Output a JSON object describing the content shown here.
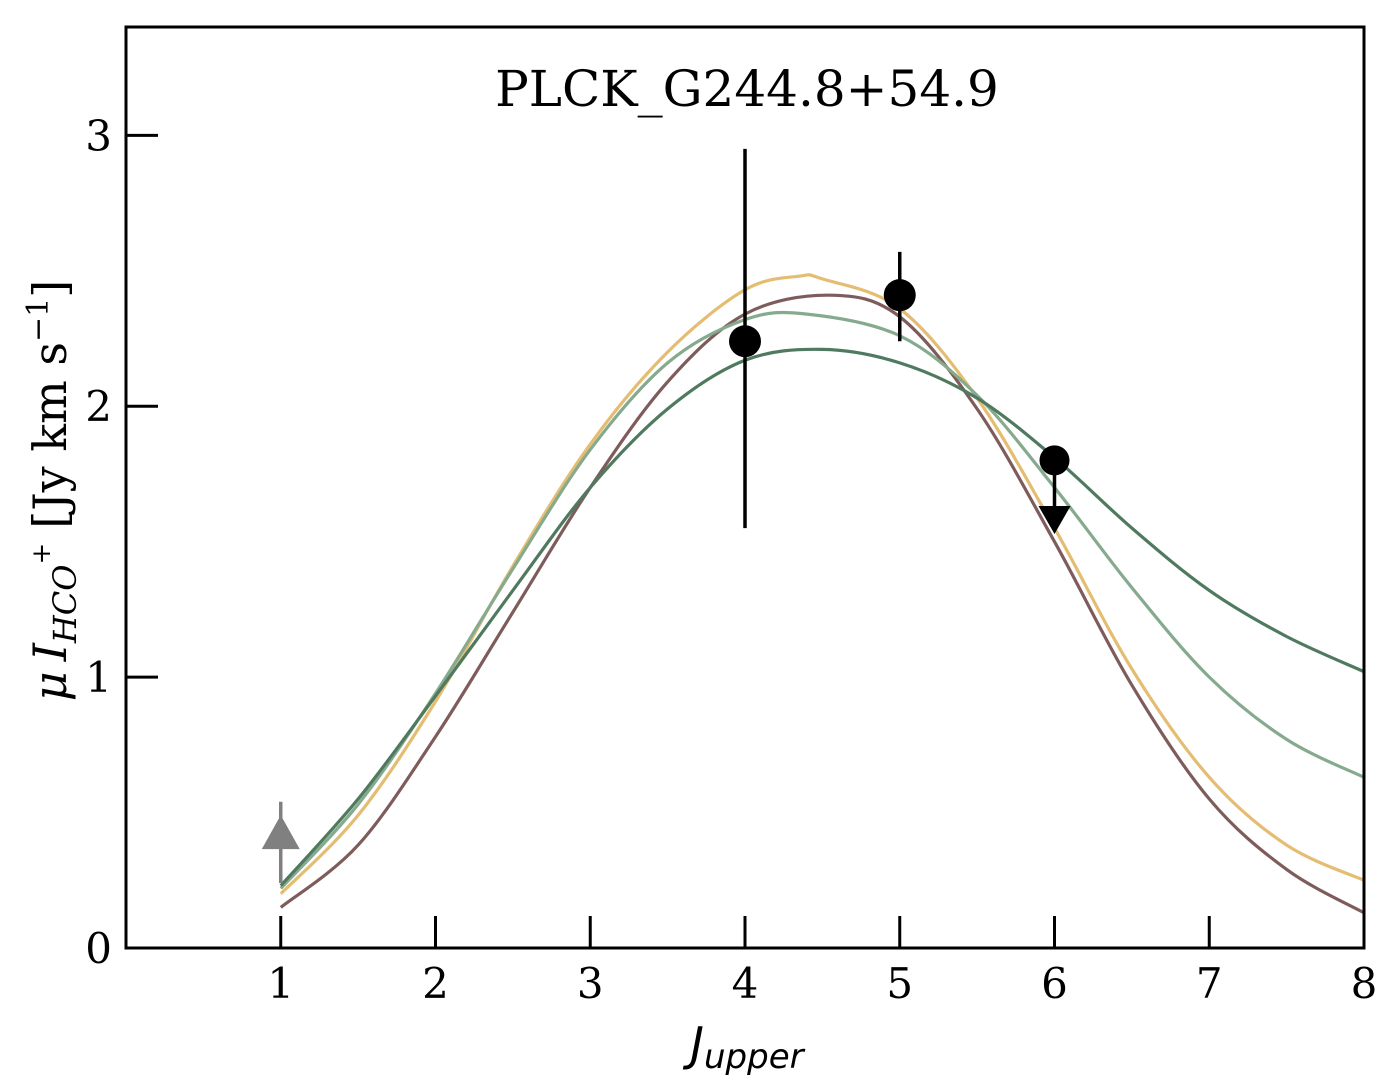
{
  "chart_data": {
    "type": "line",
    "title": "PLCK_G244.8+54.9",
    "xlabel": {
      "main": "J",
      "sub": "upper"
    },
    "ylabel": {
      "mu": "μ",
      "I": "I",
      "sub": "HCO",
      "sup": "+",
      "units": "[Jy km s",
      "units_sup": "−1",
      "units_close": "]"
    },
    "xlim": [
      0,
      8
    ],
    "ylim": [
      0,
      3.4
    ],
    "xticks": [
      1,
      2,
      3,
      4,
      5,
      6,
      7,
      8
    ],
    "xtick_labels": [
      "1",
      "2",
      "3",
      "4",
      "5",
      "6",
      "7",
      "8"
    ],
    "yticks": [
      0,
      1,
      2,
      3
    ],
    "ytick_labels": [
      "0",
      "1",
      "2",
      "3"
    ],
    "grid": false,
    "series": [
      {
        "color": "#e5bd72",
        "x": [
          1,
          1.5,
          2,
          2.5,
          3,
          3.5,
          4,
          4.35,
          4.5,
          5,
          5.5,
          6,
          6.5,
          7,
          7.5,
          8
        ],
        "y": [
          0.2,
          0.49,
          0.91,
          1.41,
          1.86,
          2.2,
          2.43,
          2.48,
          2.47,
          2.36,
          2.03,
          1.55,
          1.03,
          0.63,
          0.38,
          0.25
        ]
      },
      {
        "color": "#7f5c5c",
        "x": [
          1,
          1.5,
          2,
          2.5,
          3,
          3.5,
          4,
          4.55,
          5,
          5.5,
          6,
          6.5,
          7,
          7.5,
          8
        ],
        "y": [
          0.15,
          0.38,
          0.78,
          1.24,
          1.7,
          2.09,
          2.34,
          2.41,
          2.33,
          1.99,
          1.5,
          0.97,
          0.55,
          0.29,
          0.13
        ]
      },
      {
        "color": "#86aa8e",
        "x": [
          1,
          1.5,
          2,
          2.5,
          3,
          3.5,
          4,
          4.4,
          5,
          5.5,
          6,
          6.5,
          7,
          7.5,
          8
        ],
        "y": [
          0.22,
          0.53,
          0.94,
          1.4,
          1.84,
          2.16,
          2.32,
          2.34,
          2.26,
          2.04,
          1.7,
          1.33,
          1.0,
          0.77,
          0.63
        ]
      },
      {
        "color": "#507a5f",
        "x": [
          1,
          1.5,
          2,
          2.5,
          3,
          3.5,
          4,
          4.5,
          5,
          5.5,
          6,
          6.5,
          7,
          7.5,
          8
        ],
        "y": [
          0.23,
          0.55,
          0.93,
          1.32,
          1.7,
          1.99,
          2.17,
          2.21,
          2.16,
          2.03,
          1.81,
          1.55,
          1.32,
          1.15,
          1.02
        ]
      }
    ],
    "points": [
      {
        "x": 4,
        "y": 2.24,
        "err_low": 0.69,
        "err_high": 0.71,
        "color": "#000000",
        "marker": "circle"
      },
      {
        "x": 5,
        "y": 2.41,
        "err_low": 0.17,
        "err_high": 0.16,
        "color": "#000000",
        "marker": "circle"
      }
    ],
    "upper_limits": [
      {
        "x": 6,
        "y": 1.8,
        "arrow_to": 1.58,
        "color": "#000000"
      }
    ],
    "lower_limits": [
      {
        "x": 1,
        "y": 0.38,
        "err_low": 0.14,
        "err_high": 0.16,
        "color": "#808080"
      }
    ]
  }
}
